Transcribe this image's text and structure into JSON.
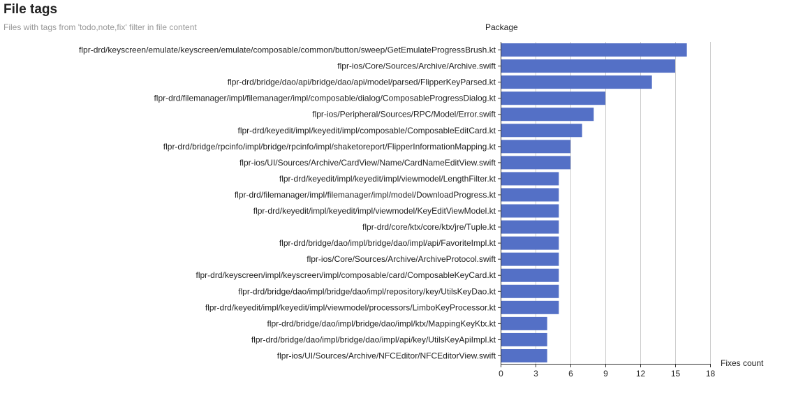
{
  "header": {
    "title": "File tags",
    "subtitle": "Files with tags from 'todo,note,fix' filter in file content"
  },
  "chart_data": {
    "type": "bar",
    "orientation": "horizontal",
    "ylabel": "Package",
    "xlabel": "Fixes count",
    "xlim": [
      0,
      18
    ],
    "xticks": [
      0,
      3,
      6,
      9,
      12,
      15,
      18
    ],
    "grid": true,
    "bar_color": "#5470c6",
    "grid_color": "#cccccc",
    "categories": [
      "flpr-drd/keyscreen/emulate/keyscreen/emulate/composable/common/button/sweep/GetEmulateProgressBrush.kt",
      "flpr-ios/Core/Sources/Archive/Archive.swift",
      "flpr-drd/bridge/dao/api/bridge/dao/api/model/parsed/FlipperKeyParsed.kt",
      "flpr-drd/filemanager/impl/filemanager/impl/composable/dialog/ComposableProgressDialog.kt",
      "flpr-ios/Peripheral/Sources/RPC/Model/Error.swift",
      "flpr-drd/keyedit/impl/keyedit/impl/composable/ComposableEditCard.kt",
      "flpr-drd/bridge/rpcinfo/impl/bridge/rpcinfo/impl/shaketoreport/FlipperInformationMapping.kt",
      "flpr-ios/UI/Sources/Archive/CardView/Name/CardNameEditView.swift",
      "flpr-drd/keyedit/impl/keyedit/impl/viewmodel/LengthFilter.kt",
      "flpr-drd/filemanager/impl/filemanager/impl/model/DownloadProgress.kt",
      "flpr-drd/keyedit/impl/keyedit/impl/viewmodel/KeyEditViewModel.kt",
      "flpr-drd/core/ktx/core/ktx/jre/Tuple.kt",
      "flpr-drd/bridge/dao/impl/bridge/dao/impl/api/FavoriteImpl.kt",
      "flpr-ios/Core/Sources/Archive/ArchiveProtocol.swift",
      "flpr-drd/keyscreen/impl/keyscreen/impl/composable/card/ComposableKeyCard.kt",
      "flpr-drd/bridge/dao/impl/bridge/dao/impl/repository/key/UtilsKeyDao.kt",
      "flpr-drd/keyedit/impl/keyedit/impl/viewmodel/processors/LimboKeyProcessor.kt",
      "flpr-drd/bridge/dao/impl/bridge/dao/impl/ktx/MappingKeyKtx.kt",
      "flpr-drd/bridge/dao/impl/bridge/dao/impl/api/key/UtilsKeyApiImpl.kt",
      "flpr-ios/UI/Sources/Archive/NFCEditor/NFCEditorView.swift"
    ],
    "values": [
      16,
      15,
      13,
      9,
      8,
      7,
      6,
      6,
      5,
      5,
      5,
      5,
      5,
      5,
      5,
      5,
      5,
      4,
      4,
      4
    ]
  }
}
